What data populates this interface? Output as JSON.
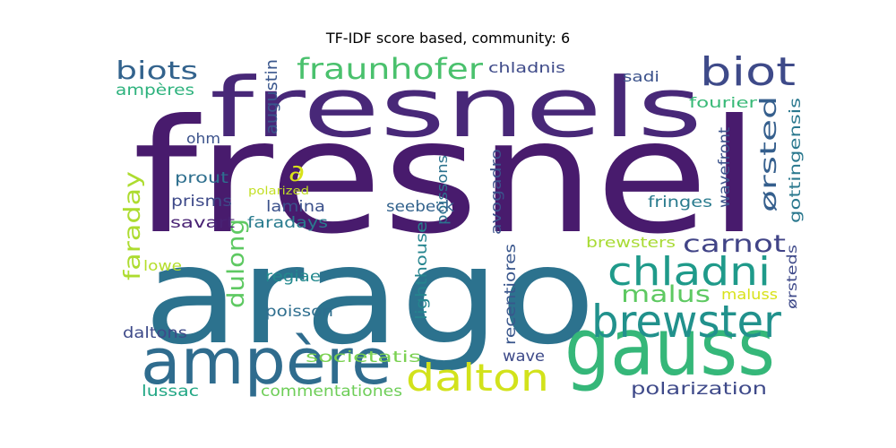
{
  "chart_data": {
    "type": "wordcloud",
    "title": "TF-IDF score based, community: 6",
    "words": [
      {
        "text": "fresnel",
        "color": "#481b6d"
      },
      {
        "text": "arago",
        "color": "#2c728e"
      },
      {
        "text": "fresnels",
        "color": "#482878"
      },
      {
        "text": "gauss",
        "color": "#35b779"
      },
      {
        "text": "ampère",
        "color": "#2f6c8e"
      },
      {
        "text": "brewster",
        "color": "#21918c"
      },
      {
        "text": "biot",
        "color": "#3e4a89"
      },
      {
        "text": "chladni",
        "color": "#1f9a8a"
      },
      {
        "text": "fraunhofer",
        "color": "#4ac16d"
      },
      {
        "text": "dalton",
        "color": "#d2e21b"
      },
      {
        "text": "carnot",
        "color": "#414487"
      },
      {
        "text": "biots",
        "color": "#33638d"
      },
      {
        "text": "dulong",
        "color": "#5ec962"
      },
      {
        "text": "faraday",
        "color": "#addc30"
      },
      {
        "text": "malus",
        "color": "#5ec962"
      },
      {
        "text": "ørsted",
        "color": "#355f8d"
      },
      {
        "text": "augustin",
        "color": "#39568c"
      },
      {
        "text": "gottingensis",
        "color": "#2a788e"
      },
      {
        "text": "wavefront",
        "color": "#3b528b"
      },
      {
        "text": "poissons",
        "color": "#2c728e"
      },
      {
        "text": "avogadro",
        "color": "#3b528b"
      },
      {
        "text": "lighthouse",
        "color": "#25848e"
      },
      {
        "text": "recentiores",
        "color": "#39568c"
      },
      {
        "text": "ørsteds",
        "color": "#3e4989"
      },
      {
        "text": "polarization",
        "color": "#3e4989"
      },
      {
        "text": "commentationes",
        "color": "#6ece58"
      },
      {
        "text": "societatis",
        "color": "#7ad151"
      },
      {
        "text": "ampères",
        "color": "#2db27d"
      },
      {
        "text": "fourier",
        "color": "#38b977"
      },
      {
        "text": "chladnis",
        "color": "#3e4a89"
      },
      {
        "text": "sadi",
        "color": "#3b528b"
      },
      {
        "text": "ohm",
        "color": "#3b528b"
      },
      {
        "text": "prout",
        "color": "#2e6f8e"
      },
      {
        "text": "prisms",
        "color": "#3e4a89"
      },
      {
        "text": "savart",
        "color": "#482173"
      },
      {
        "text": "lamina",
        "color": "#3b518b"
      },
      {
        "text": "faradays",
        "color": "#297b8e"
      },
      {
        "text": "seebeck",
        "color": "#33638d"
      },
      {
        "text": "fringes",
        "color": "#2a7b8e"
      },
      {
        "text": "brewsters",
        "color": "#a8db34"
      },
      {
        "text": "maluss",
        "color": "#d8e219"
      },
      {
        "text": "regiae",
        "color": "#23898e"
      },
      {
        "text": "poisson",
        "color": "#2e6e8e"
      },
      {
        "text": "daltons",
        "color": "#3e4a89"
      },
      {
        "text": "lowe",
        "color": "#b5de2b"
      },
      {
        "text": "wave",
        "color": "#3e4a89"
      },
      {
        "text": "lussac",
        "color": "#22a785"
      },
      {
        "text": "polarized",
        "color": "#c2df23"
      },
      {
        "text": "∂",
        "color": "#d8e219"
      }
    ]
  }
}
